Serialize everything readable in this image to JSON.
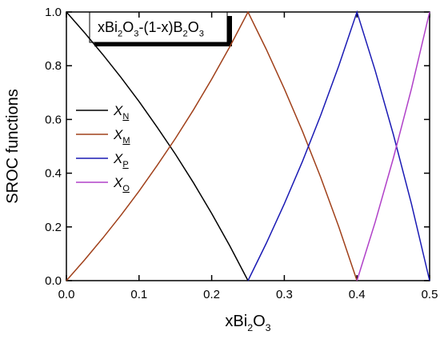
{
  "chart_data": {
    "type": "line",
    "annotation": [
      {
        "text": "xBi"
      },
      {
        "text": "2",
        "sub": true
      },
      {
        "text": "O"
      },
      {
        "text": "3",
        "sub": true
      },
      {
        "text": "-(1-x)B"
      },
      {
        "text": "2",
        "sub": true
      },
      {
        "text": "O"
      },
      {
        "text": "3",
        "sub": true
      }
    ],
    "x_label": [
      {
        "text": "xBi"
      },
      {
        "text": "2",
        "sub": true
      },
      {
        "text": "O"
      },
      {
        "text": "3",
        "sub": true
      }
    ],
    "y_label": "SROC functions",
    "x": [
      0,
      0.025,
      0.05,
      0.075,
      0.1,
      0.125,
      0.15,
      0.175,
      0.2,
      0.225,
      0.25,
      0.275,
      0.3,
      0.325,
      0.35,
      0.375,
      0.4,
      0.425,
      0.45,
      0.475,
      0.5
    ],
    "series": [
      {
        "symbol": "X",
        "subscript": "N",
        "color": "#000000",
        "values": [
          1,
          0.923,
          0.842,
          0.757,
          0.667,
          0.571,
          0.471,
          0.364,
          0.25,
          0.129,
          0,
          null,
          null,
          null,
          null,
          null,
          null,
          null,
          null,
          null,
          null
        ]
      },
      {
        "symbol": "X",
        "subscript": "M",
        "color": "#a0401a",
        "values": [
          0,
          0.077,
          0.158,
          0.243,
          0.333,
          0.429,
          0.529,
          0.636,
          0.75,
          0.871,
          1,
          0.862,
          0.714,
          0.556,
          0.385,
          0.2,
          0,
          null,
          null,
          null,
          null
        ]
      },
      {
        "symbol": "X",
        "subscript": "P",
        "color": "#1a1ab4",
        "values": [
          null,
          null,
          null,
          null,
          null,
          null,
          null,
          null,
          null,
          null,
          0,
          0.138,
          0.286,
          0.444,
          0.615,
          0.8,
          1,
          0.783,
          0.545,
          0.286,
          0
        ]
      },
      {
        "symbol": "X",
        "subscript": "O",
        "color": "#b040c8",
        "values": [
          null,
          null,
          null,
          null,
          null,
          null,
          null,
          null,
          null,
          null,
          null,
          null,
          null,
          null,
          null,
          null,
          0,
          0.217,
          0.455,
          0.714,
          1
        ]
      }
    ],
    "xlim": [
      0,
      0.5
    ],
    "ylim": [
      0,
      1
    ],
    "xticks": [
      {
        "value": 0,
        "label": "0.0"
      },
      0.1,
      0.2,
      0.3,
      0.4,
      0.5
    ],
    "yticks": [
      {
        "value": 0,
        "label": "0.0"
      },
      0.2,
      0.4,
      0.6,
      0.8,
      {
        "value": 1,
        "label": "1.0"
      }
    ]
  }
}
